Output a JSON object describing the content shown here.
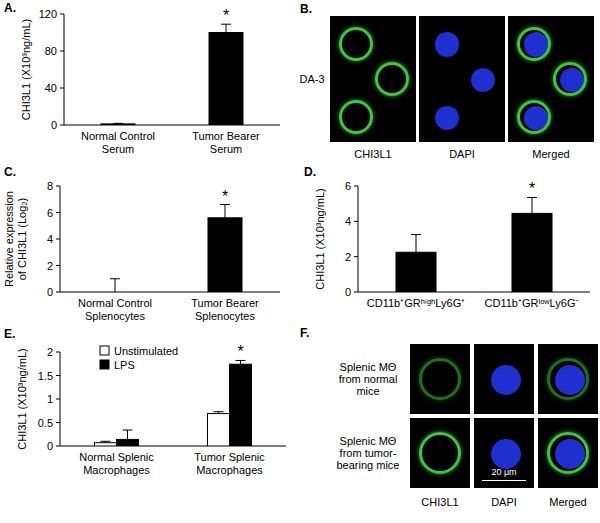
{
  "chart_data": [
    {
      "type": "bar",
      "panel_label": "A.",
      "y_label": "CHI3L1 (X10³ng/mL)",
      "categories": [
        "Normal Control Serum",
        "Tumor Bearer Serum"
      ],
      "values": [
        1.2,
        100
      ],
      "errors": [
        0.6,
        9
      ],
      "color": "#000000",
      "ylim": [
        0,
        120
      ],
      "yticks": [
        0,
        40,
        80,
        120
      ],
      "annotations": [
        {
          "text": "*",
          "x": "Tumor Bearer Serum"
        }
      ]
    },
    {
      "type": "bar",
      "panel_label": "C.",
      "y_label": "Relative expression of CHI3L1 (Log₂)",
      "categories": [
        "Normal Control Splenocytes",
        "Tumor Bearer Splenocytes"
      ],
      "values": [
        0,
        5.6
      ],
      "errors": [
        1,
        1
      ],
      "color": "#000000",
      "ylim": [
        0,
        8
      ],
      "yticks": [
        0,
        2,
        4,
        6,
        8
      ],
      "annotations": [
        {
          "text": "*",
          "x": "Tumor Bearer Splenocytes"
        }
      ]
    },
    {
      "type": "bar",
      "panel_label": "D.",
      "y_label": "CHI3L1 (X10³ng/mL)",
      "categories": [
        "CD11b⁺GRʰⁱᵍʰLy6G⁺",
        "CD11b⁺GRˡᵒʷLy6G⁻"
      ],
      "values": [
        2.25,
        4.45
      ],
      "errors": [
        1,
        0.9
      ],
      "color": "#000000",
      "ylim": [
        0,
        6
      ],
      "yticks": [
        0,
        2,
        4,
        6
      ],
      "annotations": [
        {
          "text": "*",
          "x": "CD11b⁺GRˡᵒʷLy6G⁻"
        }
      ]
    },
    {
      "type": "bar",
      "panel_label": "E.",
      "y_label": "CHI3L1 (X10³ng/mL)",
      "categories": [
        "Normal Splenic Macrophages",
        "Tumor Splenic Macrophages"
      ],
      "series": [
        {
          "name": "Unstimulated",
          "color": "#ffffff",
          "values": [
            0.07,
            0.69
          ],
          "errors": [
            0.03,
            0.04
          ]
        },
        {
          "name": "LPS",
          "color": "#000000",
          "values": [
            0.14,
            1.74
          ],
          "errors": [
            0.2,
            0.08
          ]
        }
      ],
      "ylim": [
        0,
        2
      ],
      "yticks": [
        0,
        0.5,
        1,
        1.5,
        2
      ],
      "legend": "top-left",
      "annotations": [
        {
          "text": "*",
          "x": "Tumor Splenic Macrophages",
          "series": "LPS"
        }
      ]
    }
  ],
  "micrographs": [
    {
      "panel_label": "B.",
      "rows": [
        "DA-3"
      ],
      "columns": [
        "CHI3L1",
        "DAPI",
        "Merged"
      ]
    },
    {
      "panel_label": "F.",
      "rows": [
        "Splenic MΘ from normal mice",
        "Splenic MΘ from tumor-bearing mice"
      ],
      "columns": [
        "CHI3L1",
        "DAPI",
        "Merged"
      ],
      "scale_bar": "20 μm"
    }
  ]
}
